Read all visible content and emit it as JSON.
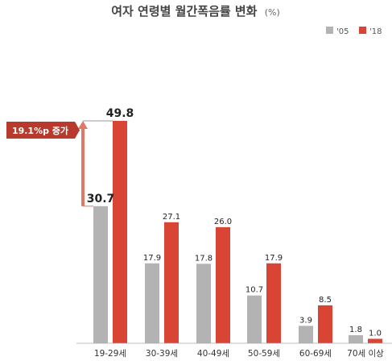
{
  "chart_data": {
    "type": "bar",
    "title": "여자 연령별 월간폭음률 변화",
    "title_unit": "(%)",
    "categories": [
      "19-29세",
      "30-39세",
      "40-49세",
      "50-59세",
      "60-69세",
      "70세 이상"
    ],
    "series": [
      {
        "name": "'05",
        "color": "#b3b3b3",
        "values": [
          30.7,
          17.9,
          17.8,
          10.7,
          3.9,
          1.8
        ]
      },
      {
        "name": "'18",
        "color": "#d94535",
        "values": [
          49.8,
          27.1,
          26.0,
          17.9,
          8.5,
          1.0
        ]
      }
    ],
    "legend_position": "top-right",
    "grid": false,
    "ylim": [
      0,
      49.8
    ],
    "annotation": {
      "text": "19.1%p 증가",
      "color": "#b83a2c",
      "arrow_color": "#e07868"
    }
  }
}
